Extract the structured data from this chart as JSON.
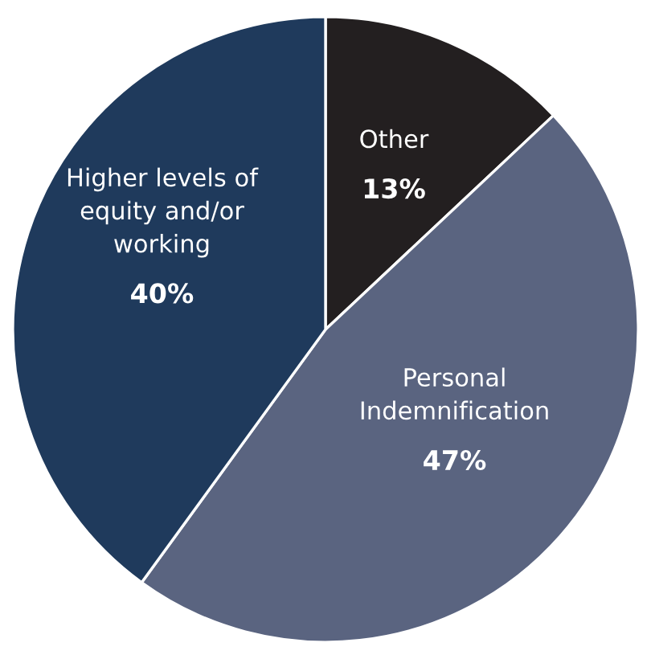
{
  "chart_data": {
    "type": "pie",
    "categories": [
      "Other",
      "Personal\nIndemnification",
      "Higher levels of\nequity and/or\nworking"
    ],
    "values": [
      13,
      47,
      40
    ],
    "colors": [
      "#231f20",
      "#5a6480",
      "#1f3a5c"
    ],
    "value_labels": [
      "13%",
      "47%",
      "40%"
    ]
  }
}
